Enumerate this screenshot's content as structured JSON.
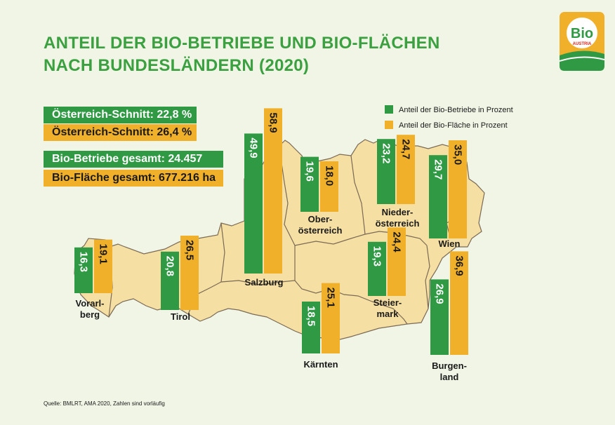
{
  "title_lines": [
    "ANTEIL DER BIO-BETRIEBE UND BIO-FLÄCHEN",
    "NACH BUNDESLÄNDERN (2020)"
  ],
  "info": {
    "avg_betriebe": "Österreich-Schnitt: 22,8 %",
    "avg_flaeche": "Österreich-Schnitt: 26,4 %",
    "total_betriebe": "Bio-Betriebe gesamt: 24.457",
    "total_flaeche": "Bio-Fläche gesamt: 677.216 ha"
  },
  "logo": {
    "text": "Bio",
    "subtext": "AUSTRIA",
    "icon": "bio-austria-logo"
  },
  "source": "Quelle: BMLRT, AMA 2020, Zahlen sind vorläufig",
  "colors": {
    "betriebe": "#2f9a43",
    "flaeche": "#f1b02a",
    "title": "#3aa040",
    "map_fill": "#f6dfa2",
    "map_border": "#7a6a56",
    "background": "#f0f5e6"
  },
  "chart_data": {
    "type": "bar",
    "units": "Prozent",
    "series": [
      {
        "name": "Anteil der Bio-Betriebe in Prozent",
        "color": "#2f9a43"
      },
      {
        "name": "Anteil der Bio-Fläche in Prozent",
        "color": "#f1b02a"
      }
    ],
    "regions": [
      {
        "label_lines": [
          "Vorarl-",
          "berg"
        ],
        "betriebe": 16.3,
        "flaeche": 19.1,
        "betriebe_label": "16,3",
        "flaeche_label": "19,1"
      },
      {
        "label_lines": [
          "Tirol"
        ],
        "betriebe": 20.8,
        "flaeche": 26.5,
        "betriebe_label": "20,8",
        "flaeche_label": "26,5"
      },
      {
        "label_lines": [
          "Salzburg"
        ],
        "betriebe": 49.9,
        "flaeche": 58.9,
        "betriebe_label": "49,9",
        "flaeche_label": "58,9"
      },
      {
        "label_lines": [
          "Kärnten"
        ],
        "betriebe": 18.5,
        "flaeche": 25.1,
        "betriebe_label": "18,5",
        "flaeche_label": "25,1"
      },
      {
        "label_lines": [
          "Ober-",
          "österreich"
        ],
        "betriebe": 19.6,
        "flaeche": 18.0,
        "betriebe_label": "19,6",
        "flaeche_label": "18,0"
      },
      {
        "label_lines": [
          "Steier-",
          "mark"
        ],
        "betriebe": 19.3,
        "flaeche": 24.4,
        "betriebe_label": "19,3",
        "flaeche_label": "24,4"
      },
      {
        "label_lines": [
          "Nieder-",
          "österreich"
        ],
        "betriebe": 23.2,
        "flaeche": 24.7,
        "betriebe_label": "23,2",
        "flaeche_label": "24,7"
      },
      {
        "label_lines": [
          "Wien"
        ],
        "betriebe": 29.7,
        "flaeche": 35.0,
        "betriebe_label": "29,7",
        "flaeche_label": "35,0"
      },
      {
        "label_lines": [
          "Burgen-",
          "land"
        ],
        "betriebe": 26.9,
        "flaeche": 36.9,
        "betriebe_label": "26,9",
        "flaeche_label": "36,9"
      }
    ]
  }
}
